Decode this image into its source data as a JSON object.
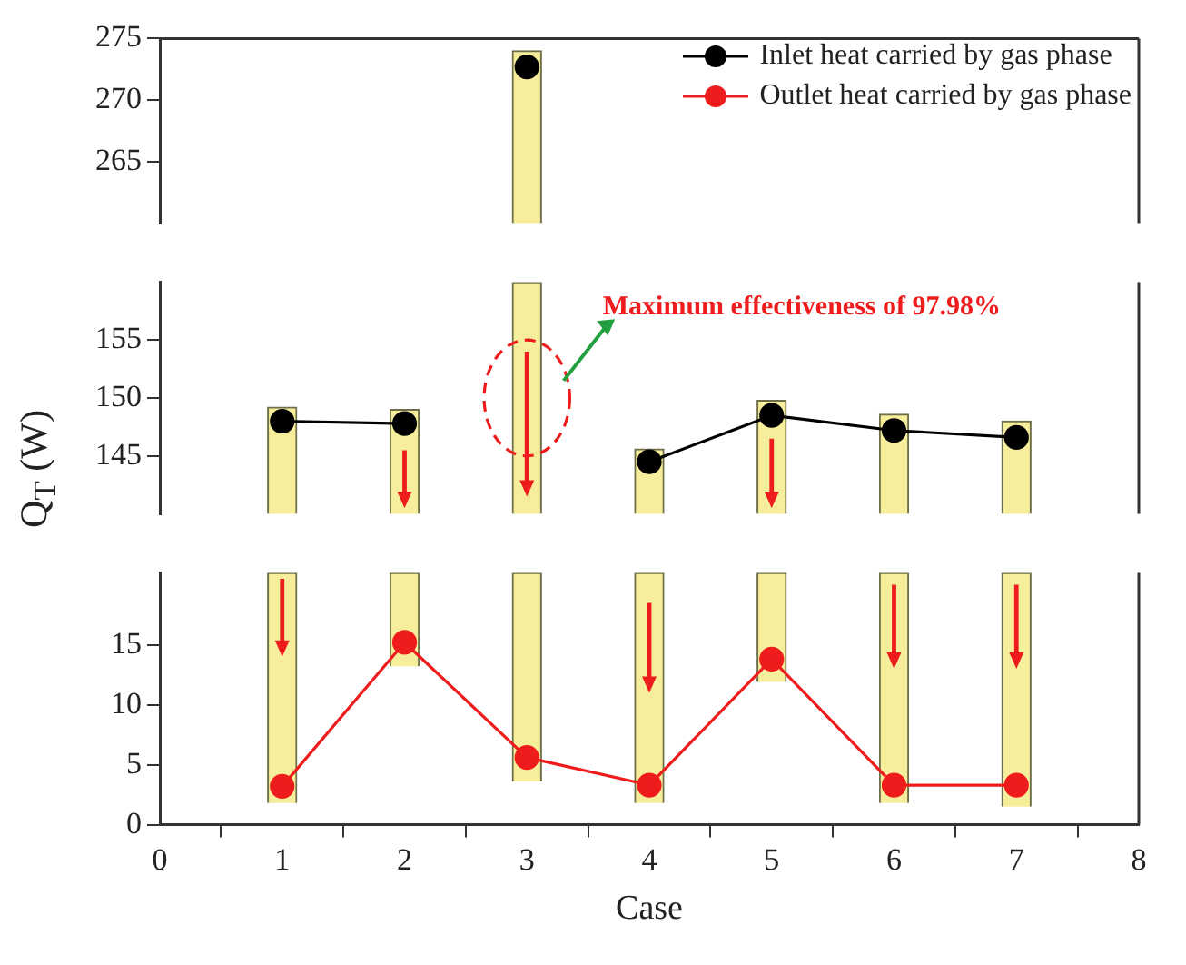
{
  "chart_data": [
    {
      "type": "line",
      "xlim": [
        0,
        8
      ],
      "xticks": [
        0,
        1,
        2,
        3,
        4,
        5,
        6,
        7,
        8
      ],
      "ylim": [
        260,
        275
      ],
      "yticks": [
        265,
        270,
        275
      ],
      "tick_labels": "y",
      "marker": "circle",
      "legend": "top right",
      "series": [
        {
          "name": "Inlet heat carried by gas phase",
          "color": "#000000",
          "x": [
            3
          ],
          "values": [
            272.7
          ]
        },
        {
          "name": "Outlet heat carried by gas phase",
          "color": "#ee1c1c"
        },
        {
          "type": "bar",
          "color": "#f7ee9c",
          "x": [
            3
          ],
          "base": [
            260
          ],
          "values": [
            14
          ]
        }
      ]
    },
    {
      "type": "line",
      "x": [
        1,
        2,
        3,
        4,
        5,
        6,
        7
      ],
      "xlim": [
        0,
        8
      ],
      "xticks": [
        0,
        1,
        2,
        3,
        4,
        5,
        6,
        7,
        8
      ],
      "ylim": [
        140,
        160
      ],
      "yticks": [
        145,
        150,
        155
      ],
      "tick_labels": "y",
      "marker": "circle",
      "ylabel": "Q$_{T}$ (W)",
      "annotations": [
        "Maximum effectiveness of 97.98%"
      ],
      "series": [
        {
          "color": "#000000",
          "values": [
            148,
            147.8,
            null,
            144.5,
            148.5,
            147.2,
            146.6
          ]
        },
        {
          "color": "#ee1c1c",
          "values": [
            null,
            null,
            null,
            null,
            null,
            null,
            null
          ]
        },
        {
          "type": "bar",
          "color": "#f7ee9c",
          "base": [
            140,
            140,
            140,
            140,
            140,
            140,
            140
          ],
          "values": [
            9.2,
            9,
            20,
            5.6,
            9.8,
            8.6,
            8
          ]
        }
      ]
    },
    {
      "type": "line",
      "x": [
        1,
        2,
        3,
        4,
        5,
        6,
        7
      ],
      "xlim": [
        0,
        8
      ],
      "xticks": [
        0,
        1,
        2,
        3,
        4,
        5,
        6,
        7,
        8
      ],
      "ylim": [
        0,
        21
      ],
      "yticks": [
        0,
        5,
        10,
        15
      ],
      "marker": "circle",
      "xlabel": "Case",
      "series": [
        {
          "color": "#000000",
          "values": [
            null,
            null,
            null,
            null,
            null,
            null,
            null
          ]
        },
        {
          "color": "#ee1c1c",
          "values": [
            3.2,
            15.2,
            5.6,
            3.3,
            13.8,
            3.3,
            3.3
          ]
        },
        {
          "type": "bar",
          "color": "#f7ee9c",
          "base": [
            1.8,
            13.2,
            3.6,
            1.8,
            11.9,
            1.8,
            1.5
          ],
          "values": [
            19.2,
            7.8,
            17.4,
            19.2,
            9.1,
            19.2,
            19.5
          ]
        }
      ]
    }
  ]
}
